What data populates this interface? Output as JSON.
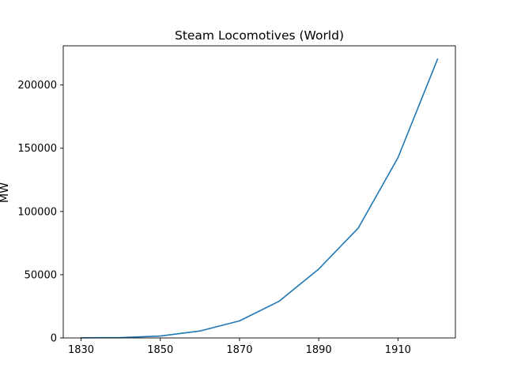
{
  "chart_data": {
    "type": "line",
    "title": "Steam Locomotives (World)",
    "xlabel": "",
    "ylabel": "MW",
    "xlim": [
      1825.5,
      1924.5
    ],
    "ylim": [
      0,
      231000
    ],
    "x_ticks": [
      1830,
      1850,
      1870,
      1890,
      1910
    ],
    "y_ticks": [
      0,
      50000,
      100000,
      150000,
      200000
    ],
    "grid": false,
    "legend": "none",
    "series": [
      {
        "color": "#1f77b4",
        "x": [
          1830,
          1840,
          1850,
          1860,
          1870,
          1880,
          1890,
          1900,
          1910,
          1920
        ],
        "y": [
          100,
          300,
          1500,
          5500,
          13500,
          29000,
          54500,
          87000,
          142500,
          220500
        ]
      }
    ]
  }
}
